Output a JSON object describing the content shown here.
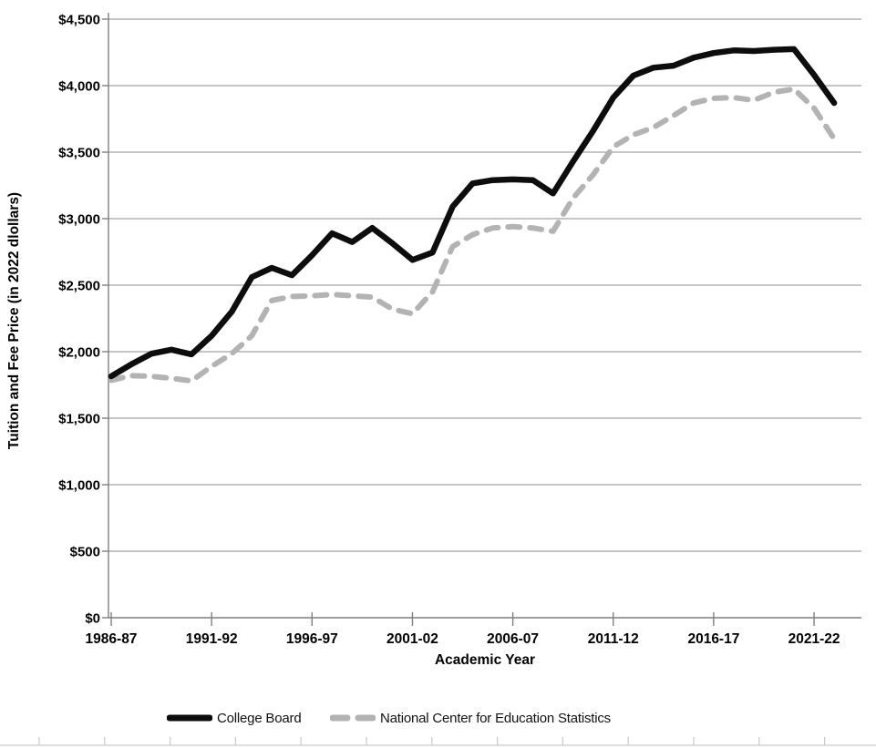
{
  "figure": {
    "background": "#ffffff",
    "text_color": "#000000"
  },
  "chart_data": {
    "type": "line",
    "title": "",
    "xlabel": "Academic Year",
    "ylabel": "Tuition and Fee Price (in 2022 dlollars)",
    "x": [
      "1986-87",
      "1987-88",
      "1988-89",
      "1989-90",
      "1990-91",
      "1991-92",
      "1992-93",
      "1993-94",
      "1994-95",
      "1995-96",
      "1996-97",
      "1997-98",
      "1998-99",
      "1999-00",
      "2000-01",
      "2001-02",
      "2002-03",
      "2003-04",
      "2004-05",
      "2005-06",
      "2006-07",
      "2007-08",
      "2008-09",
      "2009-10",
      "2010-11",
      "2011-12",
      "2012-13",
      "2013-14",
      "2014-15",
      "2015-16",
      "2016-17",
      "2017-18",
      "2018-19",
      "2019-20",
      "2020-21",
      "2021-22",
      "2022-23"
    ],
    "series": [
      {
        "name": "College Board",
        "color": "#0d0d0d",
        "style": "solid",
        "values": [
          1815,
          1905,
          1985,
          2015,
          1980,
          2120,
          2300,
          2560,
          2630,
          2575,
          2725,
          2890,
          2825,
          2930,
          2815,
          2690,
          2745,
          3090,
          3265,
          3290,
          3295,
          3290,
          3190,
          3430,
          3660,
          3910,
          4075,
          4135,
          4150,
          4210,
          4245,
          4265,
          4260,
          4270,
          4275,
          4080,
          3870
        ]
      },
      {
        "name": "National Center for Education Statistics",
        "color": "#b3b3b3",
        "style": "dashed",
        "values": [
          1785,
          1820,
          1815,
          1800,
          1780,
          1890,
          1985,
          2120,
          2385,
          2415,
          2420,
          2430,
          2420,
          2410,
          2320,
          2285,
          2450,
          2790,
          2880,
          2930,
          2940,
          2930,
          2905,
          3155,
          3330,
          3540,
          3630,
          3685,
          3775,
          3870,
          3905,
          3910,
          3890,
          3950,
          3975,
          3830,
          3600
        ]
      }
    ],
    "ylim": [
      0,
      4500
    ],
    "ytick_step": 500,
    "ytick_labels": [
      "$0",
      "$500",
      "$1,000",
      "$1,500",
      "$2,000",
      "$2,500",
      "$3,000",
      "$3,500",
      "$4,000",
      "$4,500"
    ],
    "xtick_labels": [
      "1986-87",
      "1991-92",
      "1996-97",
      "2001-02",
      "2006-07",
      "2011-12",
      "2016-17",
      "2021-22"
    ],
    "xtick_every": 5,
    "grid": "horizontal",
    "gridline_color": "#8c8c8c",
    "axis_color": "#7f7f7f",
    "legend_position": "bottom"
  }
}
